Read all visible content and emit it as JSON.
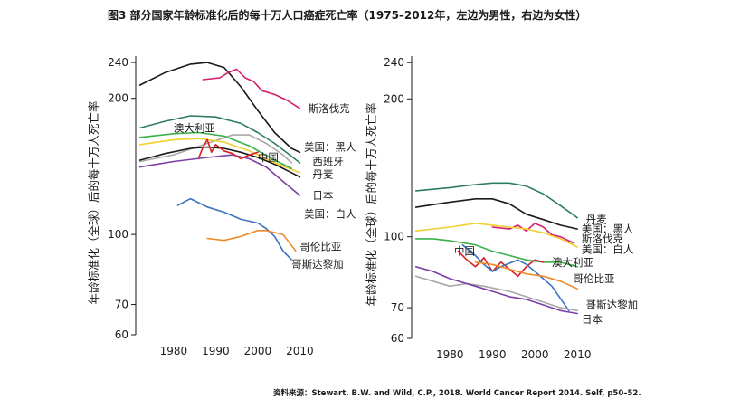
{
  "figure": {
    "title": "图3 部分国家年龄标准化后的每十万人口癌症死亡率（1975–2012年，左边为男性，右边为女性）",
    "source": "资料来源：Stewart, B.W. and Wild, C.P., 2018. World Cancer Report 2014. Self, p50–52."
  },
  "colors": {
    "美国:黑人": "#d81b6e",
    "斯洛伐克": "#d81b6e",
    "丹麦": "#2e7d5e",
    "西班牙": "#1a1a1a",
    "澳大利亚": "#2e7d5e",
    "中国": "#d32020",
    "日本": "#7b3fa6",
    "美国:白人": "#f0d02e",
    "哥伦比亚": "#ee8a2a",
    "哥斯达黎加": "#3a72c0",
    "gray": "#a8a8a8",
    "green": "#3cb04a",
    "black": "#1a1a1a",
    "teal": "#2e7d5e",
    "magenta": "#d81b6e"
  },
  "chart_data": [
    {
      "type": "line",
      "title": "",
      "ylabel": "年龄标准化（全球）后的每十万人死亡率",
      "xlabel": "",
      "xlim": [
        1971,
        2014
      ],
      "ylim": [
        60,
        248
      ],
      "yscale": "log",
      "xticks": [
        1980,
        1990,
        2000,
        2010
      ],
      "yticks": [
        60,
        70,
        100,
        200,
        240
      ],
      "series": [
        {
          "key": "black",
          "x": [
            1972,
            1978,
            1984,
            1988,
            1992,
            1996,
            2000,
            2004,
            2008,
            2010
          ],
          "y": [
            214,
            228,
            238,
            240,
            234,
            212,
            188,
            168,
            155,
            152
          ]
        },
        {
          "key": "magenta",
          "x": [
            1987,
            1991,
            1993,
            1995,
            1997,
            1999,
            2001,
            2004,
            2007,
            2010
          ],
          "y": [
            220,
            222,
            228,
            232,
            222,
            218,
            208,
            204,
            198,
            190
          ]
        },
        {
          "key": "teal",
          "x": [
            1972,
            1978,
            1984,
            1990,
            1996,
            2000,
            2004,
            2008,
            2010
          ],
          "y": [
            172,
            178,
            183,
            182,
            176,
            168,
            159,
            149,
            144
          ]
        },
        {
          "key": "gray",
          "x": [
            1972,
            1980,
            1988,
            1994,
            1998,
            2002,
            2006,
            2008
          ],
          "y": [
            145,
            150,
            159,
            166,
            166,
            159,
            150,
            144
          ]
        },
        {
          "key": "black",
          "x": [
            1972,
            1978,
            1984,
            1988,
            1992,
            1996,
            2000,
            2004,
            2008,
            2010
          ],
          "y": [
            146,
            151,
            155,
            156,
            155,
            152,
            148,
            143,
            137,
            134
          ]
        },
        {
          "key": "yellow",
          "x": [
            1972,
            1980,
            1986,
            1992,
            1998,
            2004,
            2010
          ],
          "y": [
            158,
            162,
            163,
            160,
            153,
            144,
            137
          ]
        },
        {
          "key": "green",
          "x": [
            1972,
            1980,
            1986,
            1992,
            1998,
            2004,
            2008
          ],
          "y": [
            164,
            167,
            168,
            165,
            157,
            146,
            140
          ]
        },
        {
          "key": "purple",
          "x": [
            1972,
            1980,
            1988,
            1994,
            1998,
            2002,
            2006,
            2010
          ],
          "y": [
            141,
            145,
            148,
            150,
            147,
            141,
            131,
            122
          ]
        },
        {
          "key": "red",
          "x": [
            1986,
            1987,
            1988,
            1989,
            1990,
            1992,
            1994,
            1996,
            1998,
            2000
          ],
          "y": [
            148,
            156,
            162,
            152,
            158,
            153,
            151,
            147,
            150,
            152
          ]
        },
        {
          "key": "blue",
          "x": [
            1981,
            1984,
            1988,
            1992,
            1996,
            2000,
            2002,
            2004,
            2006,
            2008
          ],
          "y": [
            116,
            120,
            115,
            112,
            108,
            106,
            103,
            99,
            92,
            88
          ]
        },
        {
          "key": "orange",
          "x": [
            1988,
            1992,
            1996,
            2000,
            2002,
            2004,
            2006,
            2009
          ],
          "y": [
            98,
            97,
            99,
            102,
            102,
            101,
            100,
            92
          ]
        }
      ],
      "labels": [
        {
          "text": "斯洛伐克",
          "x": 2012,
          "y": 190
        },
        {
          "text": "澳大利亚",
          "x": 1980,
          "y": 172
        },
        {
          "text": "美国：黑人",
          "x": 2011,
          "y": 156
        },
        {
          "text": "西班牙",
          "x": 2013,
          "y": 145
        },
        {
          "text": "中国",
          "x": 2000,
          "y": 148
        },
        {
          "text": "丹麦",
          "x": 2013,
          "y": 136
        },
        {
          "text": "日本",
          "x": 2013,
          "y": 122
        },
        {
          "text": "美国：白人",
          "x": 2011,
          "y": 111
        },
        {
          "text": "哥伦比亚",
          "x": 2010,
          "y": 94
        },
        {
          "text": "哥斯达黎加",
          "x": 2008,
          "y": 86
        }
      ]
    },
    {
      "type": "line",
      "title": "",
      "ylabel": "年龄标准化（全球）后的每十万人死亡率",
      "xlabel": "",
      "xlim": [
        1971,
        2014
      ],
      "ylim": [
        60,
        248
      ],
      "yscale": "log",
      "xticks": [
        1980,
        1990,
        2000,
        2010
      ],
      "yticks": [
        60,
        70,
        100,
        200,
        240
      ],
      "series": [
        {
          "key": "teal",
          "x": [
            1972,
            1980,
            1986,
            1990,
            1994,
            1998,
            2002,
            2006,
            2010
          ],
          "y": [
            126,
            128,
            130,
            131,
            131,
            129,
            124,
            117,
            110
          ]
        },
        {
          "key": "black",
          "x": [
            1972,
            1980,
            1986,
            1990,
            1994,
            1998,
            2002,
            2006,
            2010
          ],
          "y": [
            116,
            119,
            121,
            121,
            118,
            112,
            109,
            106,
            104
          ]
        },
        {
          "key": "magenta",
          "x": [
            1990,
            1994,
            1996,
            1998,
            2000,
            2002,
            2004,
            2006,
            2009
          ],
          "y": [
            105,
            104,
            106,
            103,
            107,
            105,
            101,
            100,
            97
          ]
        },
        {
          "key": "yellow",
          "x": [
            1972,
            1980,
            1986,
            1990,
            1994,
            1998,
            2002,
            2006,
            2010
          ],
          "y": [
            103,
            105,
            107,
            106,
            105,
            104,
            102,
            99,
            95
          ]
        },
        {
          "key": "green",
          "x": [
            1972,
            1976,
            1980,
            1986,
            1990,
            1994,
            1998,
            2002,
            2006,
            2010
          ],
          "y": [
            99,
            99,
            98,
            96,
            93,
            91,
            89,
            88,
            88,
            86
          ]
        },
        {
          "key": "red",
          "x": [
            1982,
            1984,
            1986,
            1988,
            1990,
            1992,
            1994,
            1996,
            1998,
            2000,
            2002
          ],
          "y": [
            93,
            89,
            86,
            90,
            84,
            88,
            85,
            82,
            86,
            89,
            88
          ]
        },
        {
          "key": "blue",
          "x": [
            1983,
            1986,
            1988,
            1990,
            1992,
            1996,
            1998,
            2000,
            2004,
            2008
          ],
          "y": [
            96,
            91,
            87,
            84,
            86,
            89,
            87,
            84,
            78,
            69
          ]
        },
        {
          "key": "orange",
          "x": [
            1986,
            1990,
            1994,
            1998,
            2002,
            2006,
            2010
          ],
          "y": [
            88,
            87,
            85,
            83,
            82,
            80,
            77
          ]
        },
        {
          "key": "gray",
          "x": [
            1972,
            1976,
            1980,
            1984,
            1988,
            1994,
            2000,
            2006,
            2010
          ],
          "y": [
            82,
            80,
            78,
            79,
            78,
            76,
            73,
            70,
            69
          ]
        },
        {
          "key": "purple",
          "x": [
            1972,
            1976,
            1980,
            1986,
            1990,
            1994,
            1998,
            2002,
            2006,
            2010
          ],
          "y": [
            86,
            84,
            81,
            78,
            76,
            74,
            73,
            71,
            69,
            68
          ]
        }
      ],
      "labels": [
        {
          "text": "丹麦",
          "x": 2012,
          "y": 109
        },
        {
          "text": "美国：黑人",
          "x": 2011,
          "y": 104
        },
        {
          "text": "斯洛伐克",
          "x": 2011,
          "y": 99
        },
        {
          "text": "美国：白人",
          "x": 2011,
          "y": 94
        },
        {
          "text": "中国",
          "x": 1981,
          "y": 93
        },
        {
          "text": "澳大利亚",
          "x": 2004,
          "y": 88
        },
        {
          "text": "哥伦比亚",
          "x": 2009,
          "y": 81
        },
        {
          "text": "哥斯达黎加",
          "x": 2012,
          "y": 71
        },
        {
          "text": "日本",
          "x": 2011,
          "y": 66
        }
      ]
    }
  ]
}
